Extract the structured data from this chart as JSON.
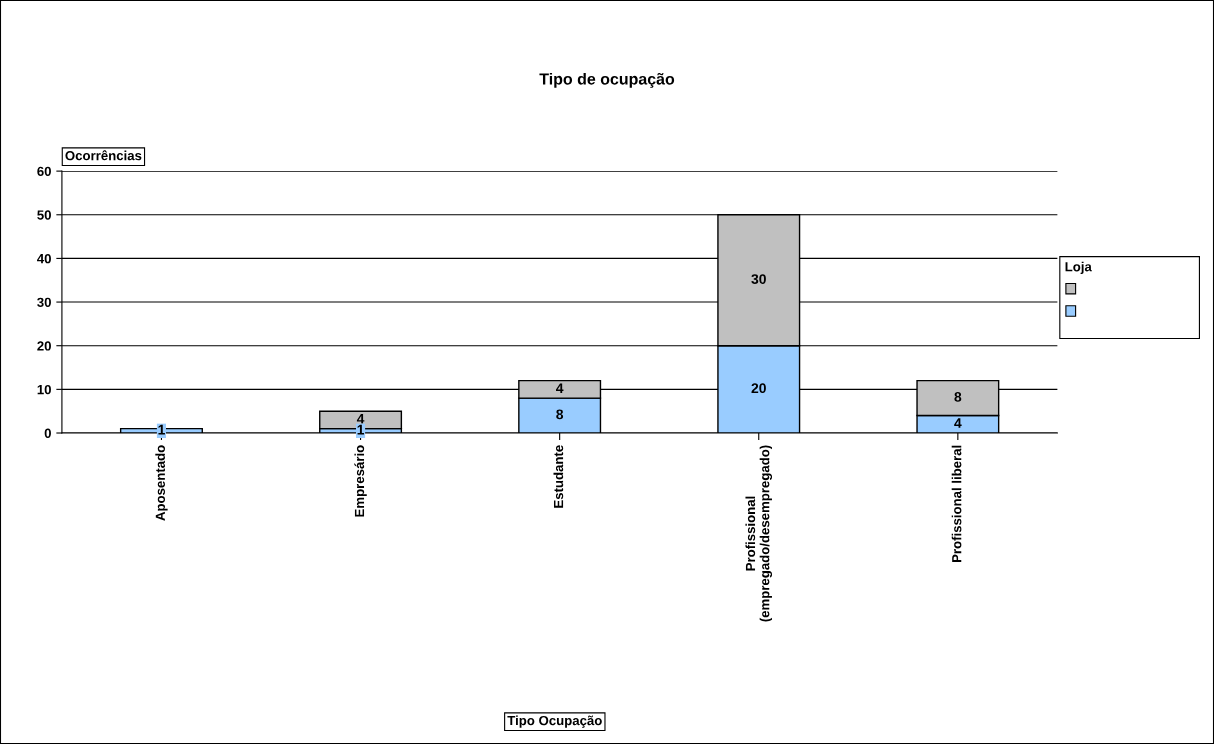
{
  "chart_data": {
    "type": "bar",
    "title": "Tipo de ocupação",
    "annotations": [
      "Tipo Ocupação"
    ],
    "ylabel": "Ocorrências",
    "legend_title": "Loja",
    "categories": [
      "Aposentado",
      "Empresário",
      "Estudante",
      "Profissional\n(empregado/desempregado)",
      "Profissional liberal"
    ],
    "series": [
      {
        "color": "#99ccff",
        "values": [
          1,
          1,
          8,
          20,
          4
        ]
      },
      {
        "color": "#c0c0c0",
        "values": [
          null,
          4,
          4,
          30,
          8
        ]
      }
    ],
    "stacked": true,
    "data_labels": true,
    "ylim": [
      0,
      60
    ],
    "yticks": [
      0,
      10,
      20,
      30,
      40,
      50,
      60
    ],
    "grid": "y"
  }
}
